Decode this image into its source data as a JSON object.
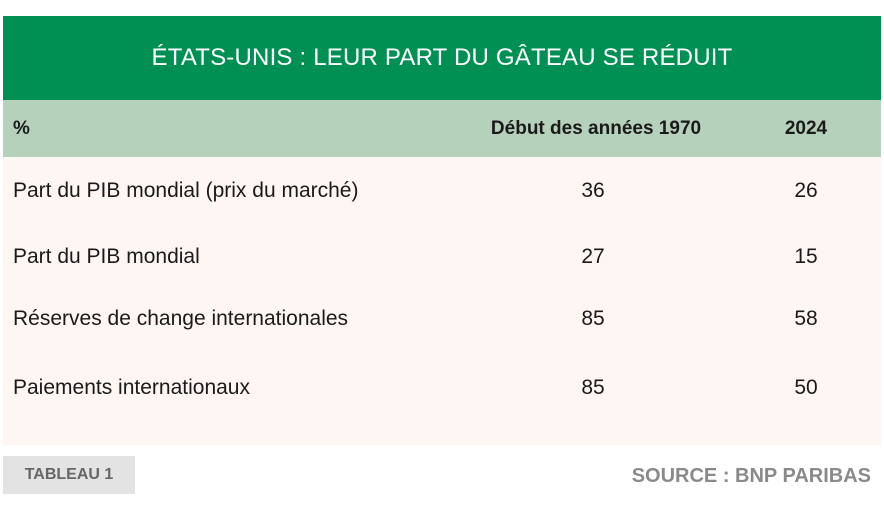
{
  "chart_data": {
    "type": "table",
    "title": "ÉTATS-UNIS : LEUR PART DU GÂTEAU SE RÉDUIT",
    "columns": [
      "%",
      "Début des années 1970",
      "2024"
    ],
    "rows": [
      {
        "label": "Part du PIB mondial (prix du marché)",
        "values": [
          "36",
          "26"
        ]
      },
      {
        "label": "Part du PIB mondial",
        "values": [
          "27",
          "15"
        ]
      },
      {
        "label": "Réserves de change internationales",
        "values": [
          "85",
          "58"
        ]
      },
      {
        "label": "Paiements internationaux",
        "values": [
          "85",
          "50"
        ]
      }
    ]
  },
  "footer": {
    "tag": "TABLEAU 1",
    "source": "SOURCE : BNP PARIBAS"
  },
  "colors": {
    "title_bg": "#009054",
    "header_bg": "#b6d1bb",
    "body_bg": "#fdf6f3"
  }
}
